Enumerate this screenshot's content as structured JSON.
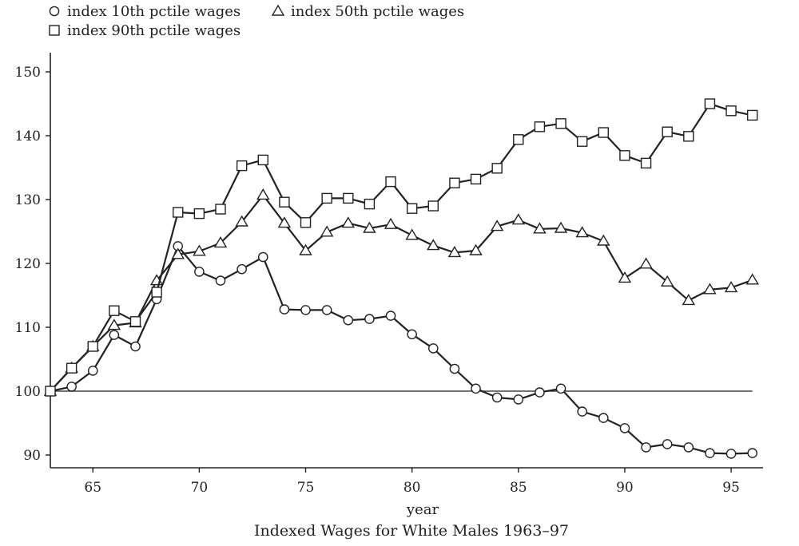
{
  "chart_data": {
    "type": "line",
    "title": "Indexed Wages for White Males 1963–97",
    "xlabel": "year",
    "ylabel": "",
    "xlim": [
      63,
      96.5
    ],
    "ylim": [
      88,
      153
    ],
    "x_ticks": [
      65,
      70,
      75,
      80,
      85,
      90,
      95
    ],
    "y_ticks": [
      90,
      100,
      110,
      120,
      130,
      140,
      150
    ],
    "reference_line": {
      "y": 100,
      "from": 63,
      "to": 96
    },
    "legend_position": "top-left",
    "x": [
      63,
      64,
      65,
      66,
      67,
      68,
      69,
      70,
      71,
      72,
      73,
      74,
      75,
      76,
      77,
      78,
      79,
      80,
      81,
      82,
      83,
      84,
      85,
      86,
      87,
      88,
      89,
      90,
      91,
      92,
      93,
      94,
      95,
      96
    ],
    "series": [
      {
        "name": "index 10th pctile wages",
        "marker": "circle",
        "values": [
          100,
          100.7,
          103.2,
          108.8,
          107.0,
          114.4,
          122.7,
          118.7,
          117.3,
          119.1,
          121.0,
          112.8,
          112.7,
          112.7,
          111.1,
          111.3,
          111.8,
          108.9,
          106.7,
          103.5,
          100.4,
          99.0,
          98.7,
          99.8,
          100.4,
          96.8,
          95.8,
          94.2,
          91.2,
          91.7,
          91.2,
          90.3,
          90.2,
          90.3
        ]
      },
      {
        "name": "index 50th pctile wages",
        "marker": "triangle",
        "values": [
          100,
          103.6,
          107.0,
          110.3,
          110.7,
          117.3,
          121.4,
          121.9,
          123.2,
          126.5,
          130.7,
          126.3,
          122.0,
          124.9,
          126.3,
          125.5,
          126.1,
          124.4,
          122.8,
          121.7,
          122.0,
          125.8,
          126.8,
          125.4,
          125.5,
          124.8,
          123.5,
          117.7,
          119.9,
          117.1,
          114.2,
          115.9,
          116.2,
          117.4
        ]
      },
      {
        "name": "index 90th pctile wages",
        "marker": "square",
        "values": [
          100,
          103.6,
          107.0,
          112.6,
          110.9,
          115.5,
          128.0,
          127.8,
          128.5,
          135.3,
          136.2,
          129.6,
          126.4,
          130.2,
          130.2,
          129.3,
          132.8,
          128.6,
          129.0,
          132.6,
          133.2,
          134.9,
          139.4,
          141.4,
          141.9,
          139.1,
          140.5,
          136.9,
          135.7,
          140.6,
          139.9,
          145.0,
          143.9,
          143.2
        ]
      }
    ]
  }
}
